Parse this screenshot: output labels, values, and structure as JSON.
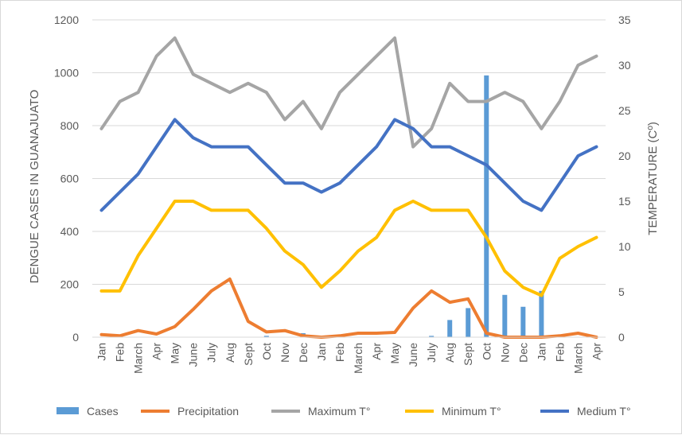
{
  "chart_data": {
    "type": "bar+line",
    "title": "",
    "ylabel_left": "DENGUE CASES IN GUANAJUATO",
    "ylabel_right": "TEMPERATURE (Cº)",
    "ylim_left": [
      0,
      1200
    ],
    "ylim_right": [
      0,
      35
    ],
    "yticks_left": [
      "0",
      "200",
      "400",
      "600",
      "800",
      "1000",
      "1200"
    ],
    "yticks_right": [
      "0",
      "5",
      "10",
      "15",
      "20",
      "25",
      "30",
      "35"
    ],
    "categories": [
      "Jan",
      "Feb",
      "March",
      "Apr",
      "May",
      "June",
      "July",
      "Aug",
      "Sept",
      "Oct",
      "Nov",
      "Dec",
      "Jan",
      "Feb",
      "March",
      "Apr",
      "May",
      "June",
      "July",
      "Aug",
      "Sept",
      "Oct",
      "Nov",
      "Dec",
      "Jan",
      "Feb",
      "March",
      "Apr"
    ],
    "series": [
      {
        "name": "Cases",
        "type": "bar",
        "axis": "left",
        "color": "#5b9bd5",
        "values": [
          0,
          0,
          0,
          0,
          0,
          0,
          0,
          0,
          0,
          5,
          0,
          15,
          0,
          0,
          0,
          0,
          0,
          0,
          5,
          65,
          110,
          990,
          160,
          115,
          175,
          0,
          0,
          0
        ]
      },
      {
        "name": "Precipitation",
        "type": "line",
        "axis": "left",
        "color": "#ed7d31",
        "values": [
          10,
          5,
          25,
          12,
          40,
          105,
          175,
          220,
          60,
          20,
          25,
          5,
          0,
          5,
          15,
          15,
          18,
          110,
          175,
          132,
          145,
          15,
          0,
          0,
          0,
          5,
          15,
          0
        ]
      },
      {
        "name": "Maximum T°",
        "type": "line",
        "axis": "right",
        "color": "#a5a5a5",
        "values": [
          23,
          26,
          27,
          31,
          33,
          29,
          28,
          27,
          28,
          27,
          24,
          26,
          23,
          27,
          29,
          31,
          33,
          21,
          23,
          28,
          26,
          26,
          27,
          26,
          23,
          26,
          30,
          31
        ]
      },
      {
        "name": "Minimum T°",
        "type": "line",
        "axis": "right",
        "color": "#ffc000",
        "values": [
          5.1,
          5.1,
          9,
          12,
          15,
          15,
          14,
          14,
          14,
          12,
          9.5,
          8,
          5.5,
          7.3,
          9.5,
          11,
          14,
          15,
          14,
          14,
          14,
          11,
          7.3,
          5.5,
          4.6,
          8.7,
          10,
          11
        ]
      },
      {
        "name": "Medium T°",
        "type": "line",
        "axis": "right",
        "color": "#4472c4",
        "values": [
          14,
          16,
          18,
          21,
          24,
          22,
          21,
          21,
          21,
          19,
          17,
          17,
          16,
          17,
          19,
          21,
          24,
          23,
          21,
          21,
          20,
          19,
          17,
          15,
          14,
          17,
          20,
          21
        ]
      }
    ],
    "legend": [
      "Cases",
      "Precipitation",
      "Maximum T°",
      "Minimum T°",
      "Medium T°"
    ],
    "legend_position": "bottom"
  }
}
